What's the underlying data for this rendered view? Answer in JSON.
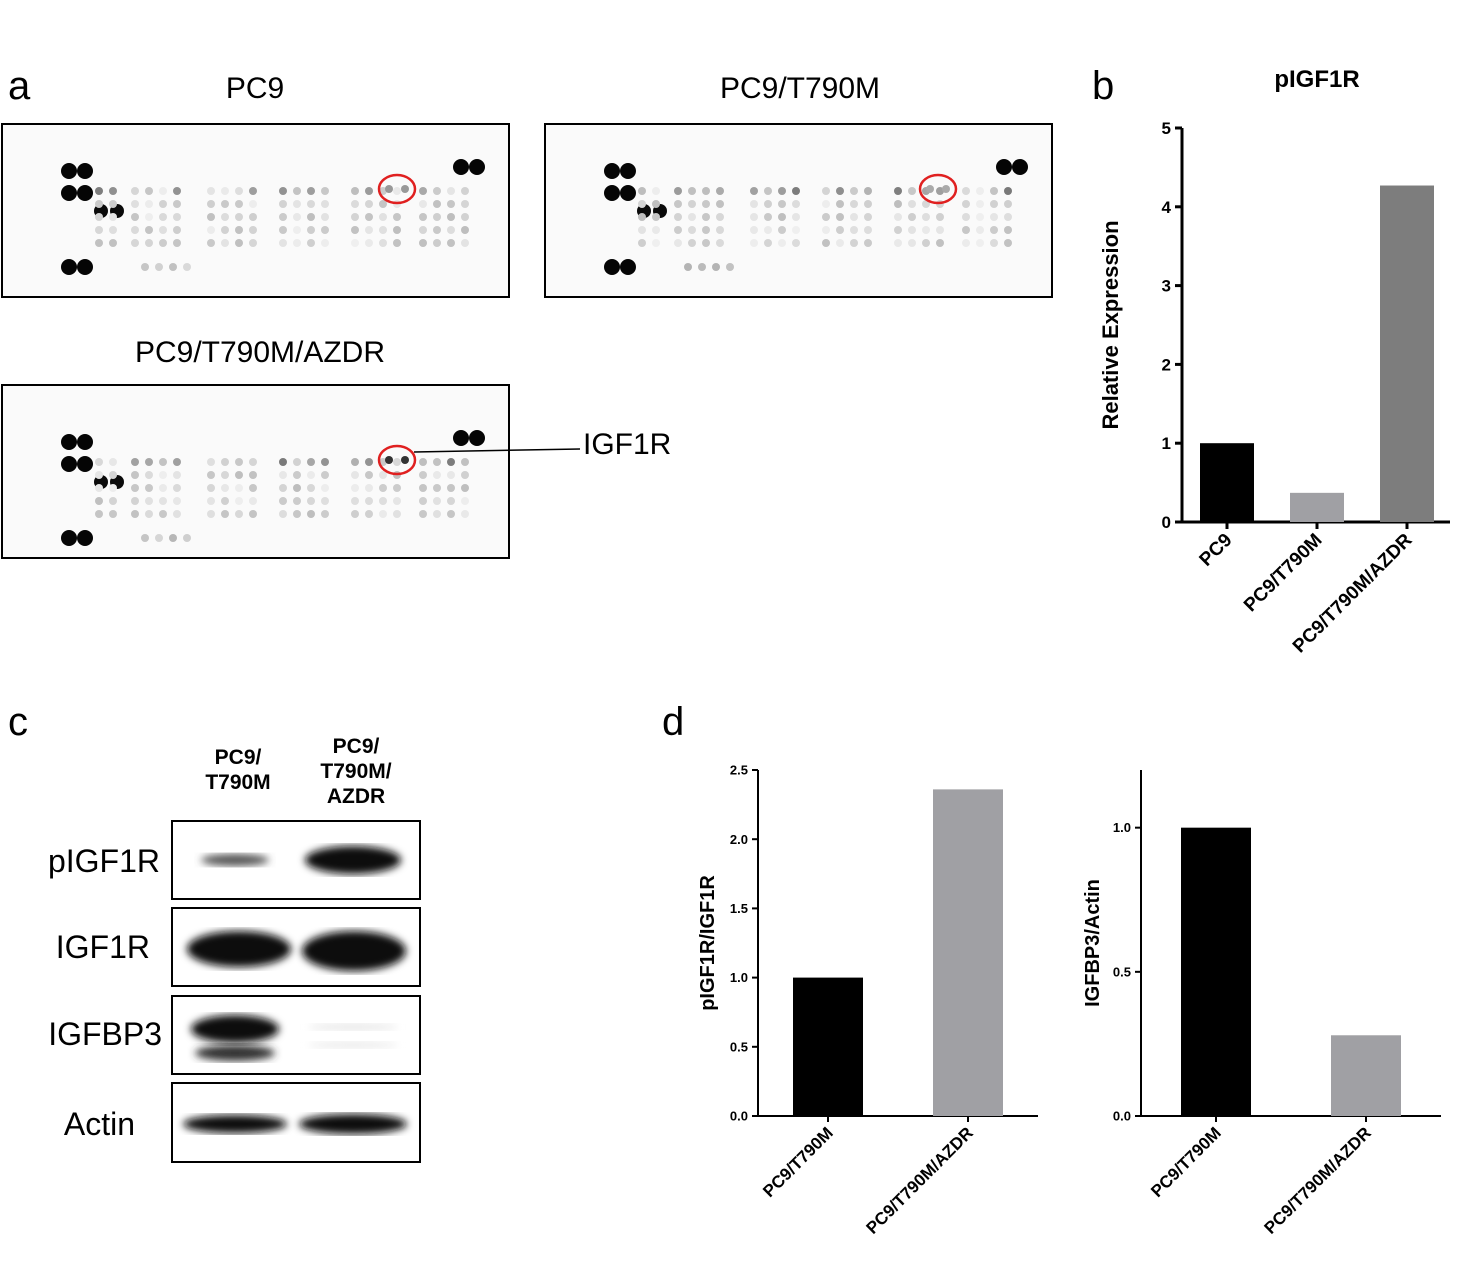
{
  "panels": {
    "a": "a",
    "b": "b",
    "c": "c",
    "d": "d"
  },
  "panel_a": {
    "arrays": [
      {
        "title": "PC9"
      },
      {
        "title": "PC9/T790M"
      },
      {
        "title": "PC9/T790M/AZDR"
      }
    ],
    "callout": "IGF1R",
    "highlight_color": "#e02020"
  },
  "panel_c": {
    "columns": [
      "PC9/\nT790M",
      "PC9/\nT790M/\nAZDR"
    ],
    "rows": [
      "pIGF1R",
      "IGF1R",
      "IGFBP3",
      "Actin"
    ]
  },
  "chart_data": [
    {
      "type": "bar",
      "title": "pIGF1R",
      "ylabel": "Relative Expression",
      "categories": [
        "PC9",
        "PC9/T790M",
        "PC9/T790M/AZDR"
      ],
      "values": [
        1.0,
        0.37,
        4.27
      ],
      "colors": [
        "#000000",
        "#a0a0a4",
        "#7d7d7d"
      ],
      "ylim": [
        0,
        5
      ],
      "yticks": [
        "0",
        "1",
        "2",
        "3",
        "4",
        "5"
      ]
    },
    {
      "type": "bar",
      "ylabel": "pIGF1R/IGF1R",
      "categories": [
        "PC9/T790M",
        "PC9/T790M/AZDR"
      ],
      "values": [
        1.0,
        2.36
      ],
      "colors": [
        "#000000",
        "#a0a0a4"
      ],
      "ylim": [
        0,
        2.5
      ],
      "yticks": [
        "0.0",
        "0.5",
        "1.0",
        "1.5",
        "2.0",
        "2.5"
      ]
    },
    {
      "type": "bar",
      "ylabel": "IGFBP3/Actin",
      "categories": [
        "PC9/T790M",
        "PC9/T790M/AZDR"
      ],
      "values": [
        1.0,
        0.28
      ],
      "colors": [
        "#000000",
        "#a0a0a4"
      ],
      "ylim": [
        0,
        1.2
      ],
      "yticks": [
        "0.0",
        "0.5",
        "1.0"
      ]
    }
  ]
}
